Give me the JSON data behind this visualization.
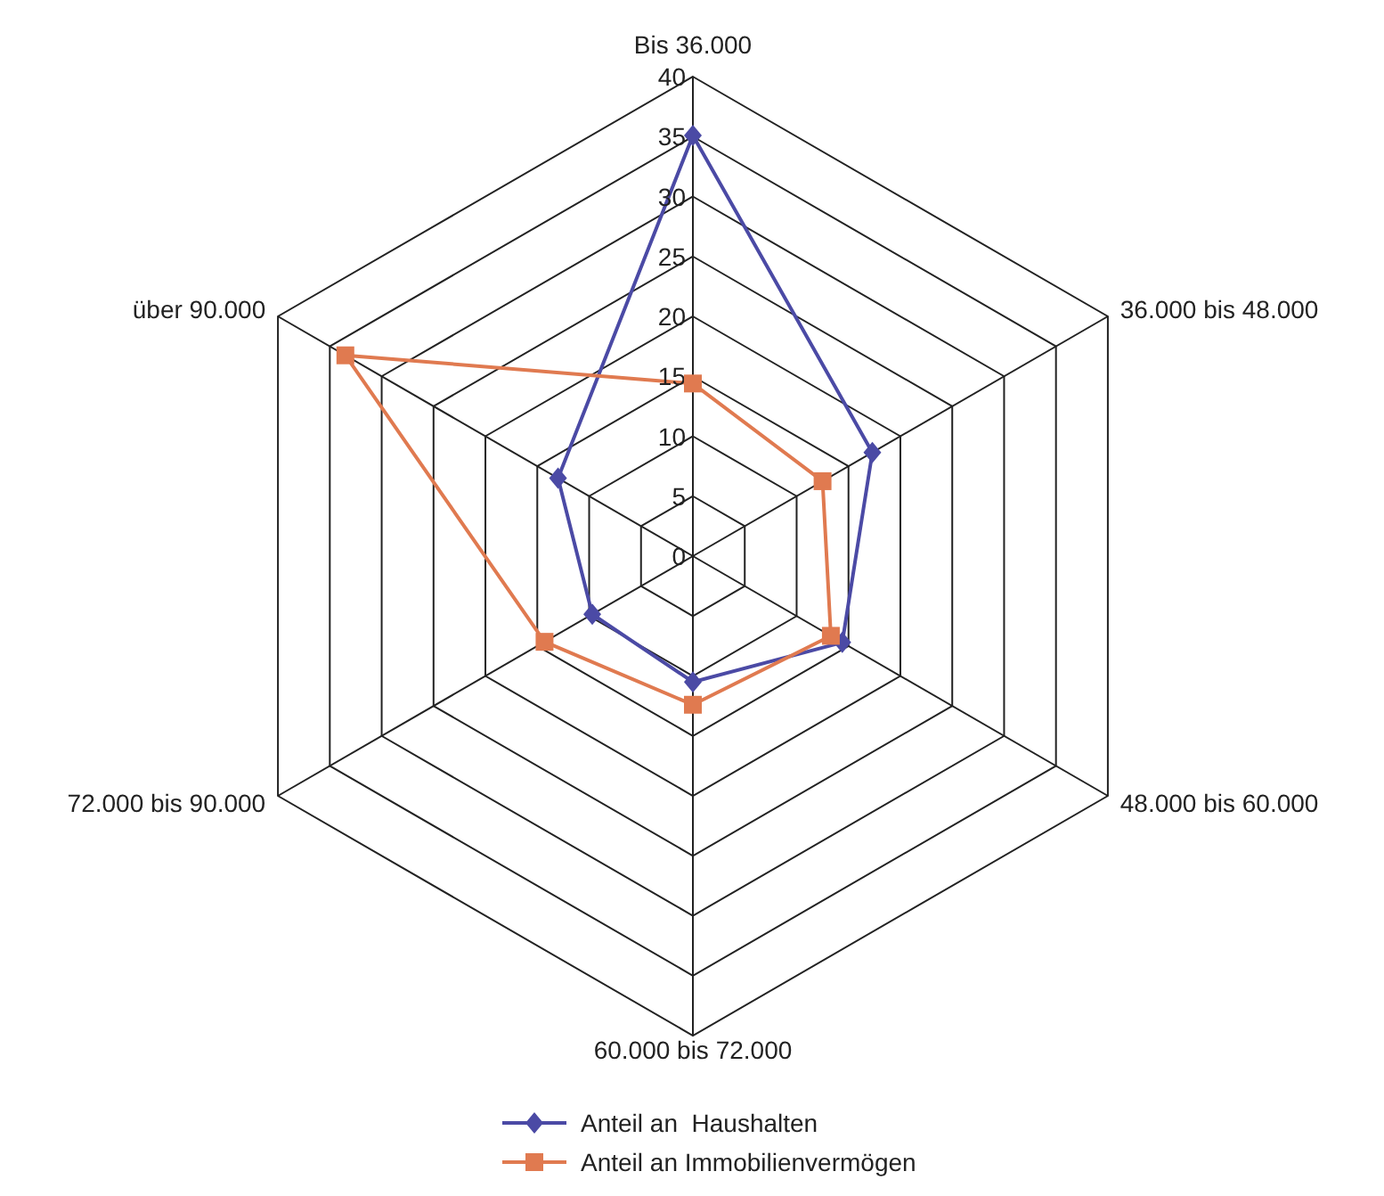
{
  "chart_data": {
    "type": "radar",
    "categories": [
      "Bis 36.000",
      "36.000 bis 48.000",
      "48.000 bis 60.000",
      "60.000 bis 72.000",
      "72.000 bis 90.000",
      "über 90.000"
    ],
    "series": [
      {
        "name": "Anteil an  Haushalten",
        "color": "#4b4aa5",
        "marker": "diamond",
        "values": [
          35.1,
          17.3,
          14.4,
          10.5,
          9.7,
          13.0
        ]
      },
      {
        "name": "Anteil an Immobilienvermögen",
        "color": "#e07a50",
        "marker": "square",
        "values": [
          14.4,
          12.5,
          13.3,
          12.4,
          14.3,
          33.5
        ]
      }
    ],
    "ylim": [
      0,
      40
    ],
    "yticks": [
      0,
      5,
      10,
      15,
      20,
      25,
      30,
      35,
      40
    ],
    "grid": true,
    "legend": "bottom"
  }
}
